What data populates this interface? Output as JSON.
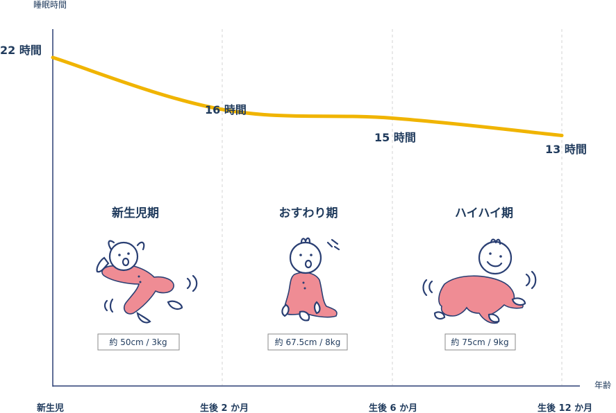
{
  "chart_data": {
    "type": "line",
    "ylabel": "睡眠時間",
    "xlabel": "年齢",
    "categories": [
      "新生児",
      "生後 2 か月",
      "生後 6 か月",
      "生後 12 か月"
    ],
    "series": [
      {
        "values": [
          22,
          16,
          15,
          13
        ],
        "value_labels": [
          "22 時間",
          "16 時間",
          "15 時間",
          "13 時間"
        ]
      }
    ],
    "grid": "vertical dashed",
    "line_color": "#f0b400",
    "stages": [
      {
        "title": "新生児期",
        "spec": "約 50cm / 3kg",
        "illustration": "newborn-baby-icon"
      },
      {
        "title": "おすわり期",
        "spec": "約 67.5cm / 8kg",
        "illustration": "sitting-baby-icon"
      },
      {
        "title": "ハイハイ期",
        "spec": "約 75cm / 9kg",
        "illustration": "crawling-baby-icon"
      }
    ]
  }
}
